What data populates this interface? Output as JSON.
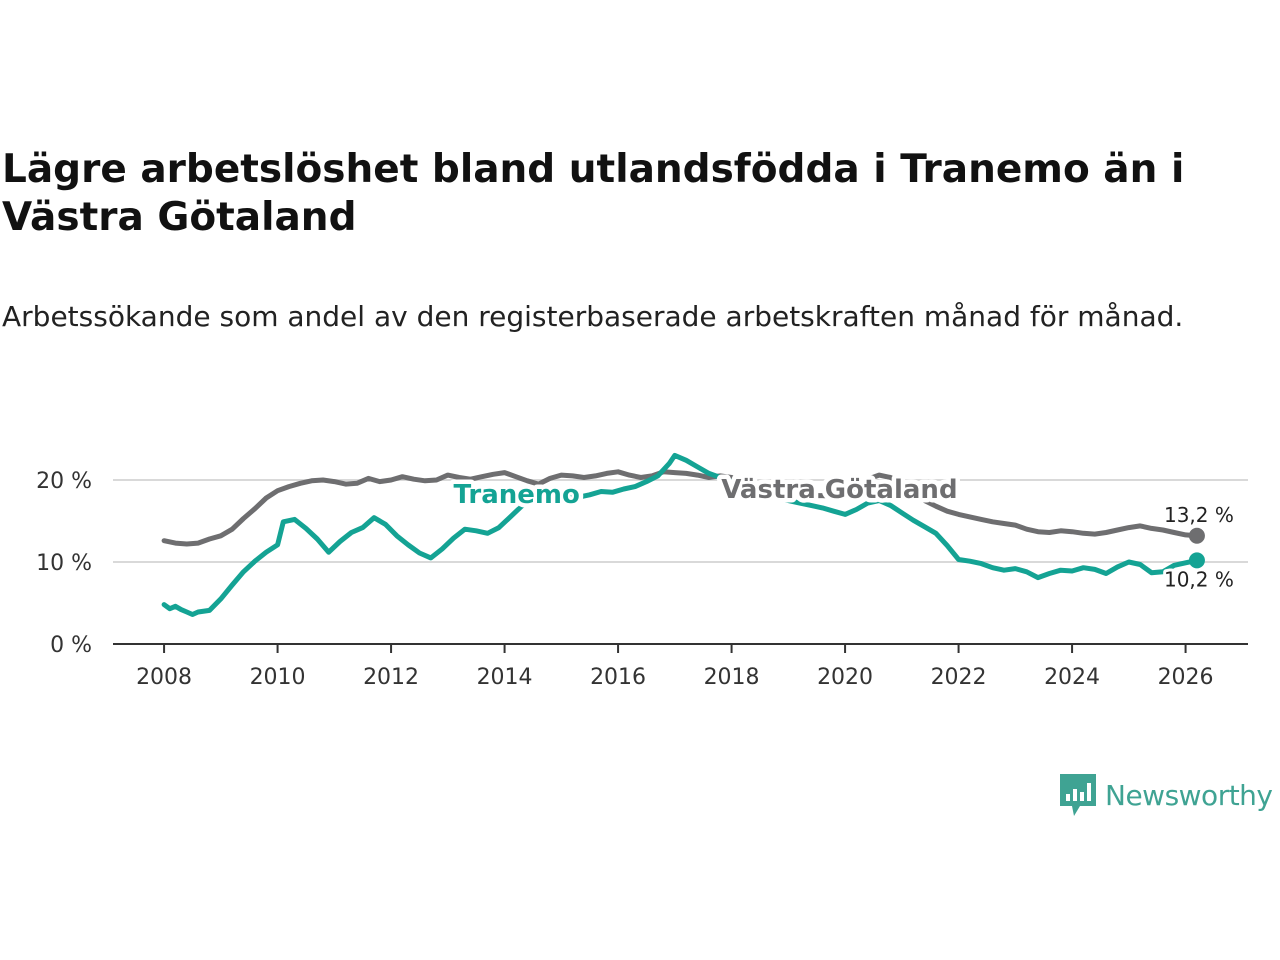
{
  "title": "Lägre arbetslöshet bland utlandsfödda i Tranemo än i Västra Götaland",
  "subtitle": "Arbetssökande som andel av den registerbaserade arbetskraften månad för månad.",
  "brand": {
    "name": "Newsworthy",
    "icon": "newsworthy-logo-icon",
    "color": "#3fa393"
  },
  "chart_data": {
    "type": "line",
    "xlabel": "",
    "ylabel": "",
    "xlim": [
      2007.1,
      2027.1
    ],
    "ylim": [
      0,
      20
    ],
    "x_ticks": [
      {
        "value": 2008,
        "label": "2008"
      },
      {
        "value": 2010,
        "label": "2010"
      },
      {
        "value": 2012,
        "label": "2012"
      },
      {
        "value": 2014,
        "label": "2014"
      },
      {
        "value": 2016,
        "label": "2016"
      },
      {
        "value": 2018,
        "label": "2018"
      },
      {
        "value": 2020,
        "label": "2020"
      },
      {
        "value": 2022,
        "label": "2022"
      },
      {
        "value": 2024,
        "label": "2024"
      },
      {
        "value": 2026,
        "label": "2026"
      }
    ],
    "y_ticks": [
      {
        "value": 0,
        "label": "0 %"
      },
      {
        "value": 10,
        "label": "10 %"
      },
      {
        "value": 20,
        "label": "20 %"
      }
    ],
    "grid": true,
    "series": [
      {
        "name": "Västra Götaland",
        "color": "#6e6e70",
        "end_label": "13,2 %",
        "points": [
          [
            2008.0,
            12.6
          ],
          [
            2008.2,
            12.3
          ],
          [
            2008.4,
            12.2
          ],
          [
            2008.6,
            12.3
          ],
          [
            2008.8,
            12.8
          ],
          [
            2009.0,
            13.2
          ],
          [
            2009.2,
            14.0
          ],
          [
            2009.4,
            15.3
          ],
          [
            2009.6,
            16.5
          ],
          [
            2009.8,
            17.8
          ],
          [
            2010.0,
            18.7
          ],
          [
            2010.2,
            19.2
          ],
          [
            2010.4,
            19.6
          ],
          [
            2010.6,
            19.9
          ],
          [
            2010.8,
            20.0
          ],
          [
            2011.0,
            19.8
          ],
          [
            2011.2,
            19.5
          ],
          [
            2011.4,
            19.6
          ],
          [
            2011.6,
            20.2
          ],
          [
            2011.8,
            19.8
          ],
          [
            2012.0,
            20.0
          ],
          [
            2012.2,
            20.4
          ],
          [
            2012.4,
            20.1
          ],
          [
            2012.6,
            19.9
          ],
          [
            2012.8,
            20.0
          ],
          [
            2013.0,
            20.6
          ],
          [
            2013.2,
            20.3
          ],
          [
            2013.4,
            20.1
          ],
          [
            2013.6,
            20.4
          ],
          [
            2013.8,
            20.7
          ],
          [
            2014.0,
            20.9
          ],
          [
            2014.2,
            20.4
          ],
          [
            2014.4,
            19.9
          ],
          [
            2014.6,
            19.5
          ],
          [
            2014.8,
            20.2
          ],
          [
            2015.0,
            20.6
          ],
          [
            2015.2,
            20.5
          ],
          [
            2015.4,
            20.3
          ],
          [
            2015.6,
            20.5
          ],
          [
            2015.8,
            20.8
          ],
          [
            2016.0,
            21.0
          ],
          [
            2016.2,
            20.6
          ],
          [
            2016.4,
            20.3
          ],
          [
            2016.6,
            20.5
          ],
          [
            2016.8,
            21.0
          ],
          [
            2017.0,
            20.9
          ],
          [
            2017.2,
            20.8
          ],
          [
            2017.4,
            20.6
          ],
          [
            2017.6,
            20.3
          ],
          [
            2017.8,
            20.5
          ],
          [
            2018.0,
            20.3
          ],
          [
            2018.2,
            19.8
          ],
          [
            2018.4,
            19.3
          ],
          [
            2018.6,
            19.0
          ],
          [
            2018.8,
            18.7
          ],
          [
            2019.0,
            18.5
          ],
          [
            2019.2,
            18.3
          ],
          [
            2019.4,
            18.1
          ],
          [
            2019.6,
            18.1
          ],
          [
            2019.8,
            18.0
          ],
          [
            2020.0,
            18.3
          ],
          [
            2020.2,
            19.2
          ],
          [
            2020.4,
            20.1
          ],
          [
            2020.6,
            20.6
          ],
          [
            2020.8,
            20.3
          ],
          [
            2021.0,
            19.6
          ],
          [
            2021.2,
            18.5
          ],
          [
            2021.4,
            17.5
          ],
          [
            2021.6,
            16.8
          ],
          [
            2021.8,
            16.2
          ],
          [
            2022.0,
            15.8
          ],
          [
            2022.2,
            15.5
          ],
          [
            2022.4,
            15.2
          ],
          [
            2022.6,
            14.9
          ],
          [
            2022.8,
            14.7
          ],
          [
            2023.0,
            14.5
          ],
          [
            2023.2,
            14.0
          ],
          [
            2023.4,
            13.7
          ],
          [
            2023.6,
            13.6
          ],
          [
            2023.8,
            13.8
          ],
          [
            2024.0,
            13.7
          ],
          [
            2024.2,
            13.5
          ],
          [
            2024.4,
            13.4
          ],
          [
            2024.6,
            13.6
          ],
          [
            2024.8,
            13.9
          ],
          [
            2025.0,
            14.2
          ],
          [
            2025.2,
            14.4
          ],
          [
            2025.4,
            14.1
          ],
          [
            2025.6,
            13.9
          ],
          [
            2025.8,
            13.6
          ],
          [
            2026.0,
            13.3
          ],
          [
            2026.2,
            13.2
          ]
        ]
      },
      {
        "name": "Tranemo",
        "color": "#14a394",
        "end_label": "10,2 %",
        "points": [
          [
            2008.0,
            4.8
          ],
          [
            2008.1,
            4.3
          ],
          [
            2008.2,
            4.6
          ],
          [
            2008.3,
            4.2
          ],
          [
            2008.4,
            3.9
          ],
          [
            2008.5,
            3.6
          ],
          [
            2008.6,
            3.9
          ],
          [
            2008.8,
            4.1
          ],
          [
            2009.0,
            5.5
          ],
          [
            2009.2,
            7.2
          ],
          [
            2009.4,
            8.8
          ],
          [
            2009.6,
            10.1
          ],
          [
            2009.8,
            11.2
          ],
          [
            2010.0,
            12.1
          ],
          [
            2010.1,
            14.9
          ],
          [
            2010.3,
            15.2
          ],
          [
            2010.5,
            14.1
          ],
          [
            2010.7,
            12.8
          ],
          [
            2010.9,
            11.2
          ],
          [
            2011.1,
            12.5
          ],
          [
            2011.3,
            13.6
          ],
          [
            2011.5,
            14.2
          ],
          [
            2011.7,
            15.4
          ],
          [
            2011.9,
            14.6
          ],
          [
            2012.1,
            13.2
          ],
          [
            2012.3,
            12.1
          ],
          [
            2012.5,
            11.1
          ],
          [
            2012.7,
            10.5
          ],
          [
            2012.9,
            11.6
          ],
          [
            2013.1,
            12.9
          ],
          [
            2013.3,
            14.0
          ],
          [
            2013.5,
            13.8
          ],
          [
            2013.7,
            13.5
          ],
          [
            2013.9,
            14.2
          ],
          [
            2014.1,
            15.5
          ],
          [
            2014.3,
            16.8
          ],
          [
            2014.5,
            17.6
          ],
          [
            2014.7,
            18.4
          ],
          [
            2014.9,
            18.9
          ],
          [
            2015.1,
            18.6
          ],
          [
            2015.3,
            17.9
          ],
          [
            2015.5,
            18.2
          ],
          [
            2015.7,
            18.6
          ],
          [
            2015.9,
            18.5
          ],
          [
            2016.1,
            18.9
          ],
          [
            2016.3,
            19.2
          ],
          [
            2016.5,
            19.8
          ],
          [
            2016.7,
            20.5
          ],
          [
            2016.9,
            22.0
          ],
          [
            2017.0,
            23.0
          ],
          [
            2017.2,
            22.4
          ],
          [
            2017.4,
            21.6
          ],
          [
            2017.6,
            20.8
          ],
          [
            2017.8,
            20.3
          ],
          [
            2018.0,
            19.8
          ],
          [
            2018.2,
            19.1
          ],
          [
            2018.4,
            18.6
          ],
          [
            2018.6,
            18.3
          ],
          [
            2018.8,
            17.9
          ],
          [
            2019.0,
            17.5
          ],
          [
            2019.2,
            17.2
          ],
          [
            2019.4,
            16.9
          ],
          [
            2019.6,
            16.6
          ],
          [
            2019.8,
            16.2
          ],
          [
            2020.0,
            15.8
          ],
          [
            2020.2,
            16.4
          ],
          [
            2020.4,
            17.2
          ],
          [
            2020.6,
            17.5
          ],
          [
            2020.8,
            16.9
          ],
          [
            2021.0,
            16.0
          ],
          [
            2021.2,
            15.1
          ],
          [
            2021.4,
            14.3
          ],
          [
            2021.6,
            13.5
          ],
          [
            2021.8,
            12.0
          ],
          [
            2022.0,
            10.3
          ],
          [
            2022.2,
            10.1
          ],
          [
            2022.4,
            9.8
          ],
          [
            2022.6,
            9.3
          ],
          [
            2022.8,
            9.0
          ],
          [
            2023.0,
            9.2
          ],
          [
            2023.2,
            8.8
          ],
          [
            2023.4,
            8.1
          ],
          [
            2023.6,
            8.6
          ],
          [
            2023.8,
            9.0
          ],
          [
            2024.0,
            8.9
          ],
          [
            2024.2,
            9.3
          ],
          [
            2024.4,
            9.1
          ],
          [
            2024.6,
            8.6
          ],
          [
            2024.8,
            9.4
          ],
          [
            2025.0,
            10.0
          ],
          [
            2025.2,
            9.7
          ],
          [
            2025.4,
            8.7
          ],
          [
            2025.6,
            8.8
          ],
          [
            2025.8,
            9.6
          ],
          [
            2026.0,
            9.9
          ],
          [
            2026.2,
            10.2
          ]
        ]
      }
    ]
  }
}
